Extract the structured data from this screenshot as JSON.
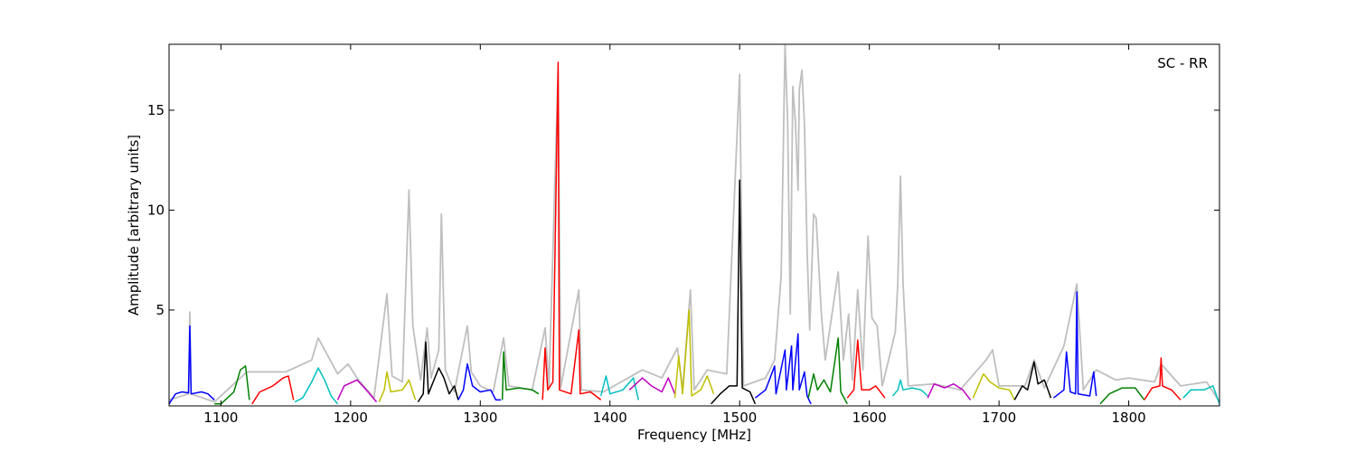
{
  "chart_data": {
    "type": "line",
    "xlabel": "Frequency [MHz]",
    "ylabel": "Amplitude [arbitrary units]",
    "annotation": "SC - RR",
    "annotation_position": "top-right",
    "xlim": [
      1060,
      1870
    ],
    "ylim": [
      0.2,
      18.3
    ],
    "xticks": [
      1100,
      1200,
      1300,
      1400,
      1500,
      1600,
      1700,
      1800
    ],
    "yticks": [
      5,
      10,
      15
    ],
    "grid": false,
    "legend": "none",
    "background_series": {
      "name": "",
      "color": "#bfbfbf",
      "points": [
        [
          1060,
          0.5
        ],
        [
          1075,
          0.8
        ],
        [
          1076,
          4.9
        ],
        [
          1077,
          0.8
        ],
        [
          1095,
          0.4
        ],
        [
          1120,
          1.9
        ],
        [
          1150,
          1.9
        ],
        [
          1170,
          2.5
        ],
        [
          1175,
          3.6
        ],
        [
          1180,
          3.0
        ],
        [
          1190,
          1.8
        ],
        [
          1198,
          2.3
        ],
        [
          1205,
          1.6
        ],
        [
          1218,
          0.6
        ],
        [
          1228,
          5.8
        ],
        [
          1232,
          1.7
        ],
        [
          1240,
          1.4
        ],
        [
          1245,
          11.0
        ],
        [
          1248,
          4.2
        ],
        [
          1254,
          1.5
        ],
        [
          1259,
          4.1
        ],
        [
          1262,
          1.6
        ],
        [
          1268,
          3.0
        ],
        [
          1270,
          9.8
        ],
        [
          1273,
          2.0
        ],
        [
          1280,
          0.9
        ],
        [
          1290,
          4.2
        ],
        [
          1293,
          1.9
        ],
        [
          1300,
          1.2
        ],
        [
          1310,
          0.9
        ],
        [
          1318,
          3.6
        ],
        [
          1322,
          1.2
        ],
        [
          1340,
          1.0
        ],
        [
          1350,
          4.1
        ],
        [
          1353,
          1.2
        ],
        [
          1360,
          17.0
        ],
        [
          1362,
          1.1
        ],
        [
          1376,
          6.0
        ],
        [
          1378,
          1.0
        ],
        [
          1395,
          0.9
        ],
        [
          1425,
          2.0
        ],
        [
          1440,
          1.6
        ],
        [
          1452,
          3.1
        ],
        [
          1456,
          1.0
        ],
        [
          1462,
          6.0
        ],
        [
          1465,
          1.0
        ],
        [
          1475,
          2.0
        ],
        [
          1490,
          1.8
        ],
        [
          1500,
          16.8
        ],
        [
          1503,
          1.2
        ],
        [
          1520,
          1.6
        ],
        [
          1527,
          2.5
        ],
        [
          1532,
          6.7
        ],
        [
          1535,
          18.3
        ],
        [
          1537,
          14.4
        ],
        [
          1539,
          4.8
        ],
        [
          1541,
          16.2
        ],
        [
          1543,
          14.4
        ],
        [
          1545,
          11.0
        ],
        [
          1546,
          16.0
        ],
        [
          1548,
          17.0
        ],
        [
          1550,
          14.3
        ],
        [
          1552,
          8.0
        ],
        [
          1554,
          4.0
        ],
        [
          1557,
          9.8
        ],
        [
          1559,
          9.6
        ],
        [
          1563,
          4.8
        ],
        [
          1566,
          2.5
        ],
        [
          1576,
          6.9
        ],
        [
          1580,
          2.5
        ],
        [
          1584,
          4.8
        ],
        [
          1587,
          1.5
        ],
        [
          1591,
          6.0
        ],
        [
          1595,
          2.0
        ],
        [
          1599,
          8.7
        ],
        [
          1602,
          4.6
        ],
        [
          1606,
          4.2
        ],
        [
          1610,
          1.2
        ],
        [
          1620,
          3.9
        ],
        [
          1622,
          6.4
        ],
        [
          1624,
          11.7
        ],
        [
          1626,
          6.3
        ],
        [
          1630,
          1.2
        ],
        [
          1650,
          1.3
        ],
        [
          1670,
          1.0
        ],
        [
          1690,
          2.5
        ],
        [
          1695,
          3.0
        ],
        [
          1700,
          1.2
        ],
        [
          1720,
          1.2
        ],
        [
          1727,
          2.5
        ],
        [
          1735,
          1.1
        ],
        [
          1750,
          3.2
        ],
        [
          1760,
          6.3
        ],
        [
          1765,
          1.0
        ],
        [
          1775,
          2.0
        ],
        [
          1790,
          1.5
        ],
        [
          1800,
          1.6
        ],
        [
          1820,
          1.4
        ],
        [
          1825,
          2.3
        ],
        [
          1840,
          1.2
        ],
        [
          1860,
          1.4
        ],
        [
          1870,
          0.4
        ]
      ]
    },
    "series": [
      {
        "name": "",
        "color": "#0000ff",
        "points": [
          [
            1060,
            0.3
          ],
          [
            1065,
            0.8
          ],
          [
            1070,
            0.9
          ],
          [
            1075,
            0.85
          ],
          [
            1076,
            4.2
          ],
          [
            1077,
            0.8
          ],
          [
            1085,
            0.9
          ],
          [
            1090,
            0.8
          ],
          [
            1095,
            0.5
          ]
        ]
      },
      {
        "name": "",
        "color": "#008000",
        "points": [
          [
            1095,
            0.3
          ],
          [
            1100,
            0.3
          ],
          [
            1105,
            0.6
          ],
          [
            1110,
            0.9
          ],
          [
            1115,
            2.0
          ],
          [
            1119,
            2.2
          ],
          [
            1122,
            0.5
          ]
        ]
      },
      {
        "name": "",
        "color": "#ff0000",
        "points": [
          [
            1124,
            0.3
          ],
          [
            1130,
            0.9
          ],
          [
            1140,
            1.2
          ],
          [
            1148,
            1.6
          ],
          [
            1152,
            1.7
          ],
          [
            1156,
            0.5
          ]
        ]
      },
      {
        "name": "",
        "color": "#00bfbf",
        "points": [
          [
            1157,
            0.4
          ],
          [
            1163,
            0.6
          ],
          [
            1170,
            1.4
          ],
          [
            1175,
            2.1
          ],
          [
            1180,
            1.5
          ],
          [
            1185,
            0.7
          ],
          [
            1190,
            0.3
          ]
        ]
      },
      {
        "name": "",
        "color": "#bf00bf",
        "points": [
          [
            1190,
            0.5
          ],
          [
            1195,
            1.2
          ],
          [
            1205,
            1.5
          ],
          [
            1212,
            1.0
          ],
          [
            1220,
            0.4
          ]
        ]
      },
      {
        "name": "",
        "color": "#bfbf00",
        "points": [
          [
            1222,
            0.4
          ],
          [
            1226,
            1.0
          ],
          [
            1228,
            1.9
          ],
          [
            1231,
            0.9
          ],
          [
            1240,
            1.0
          ],
          [
            1245,
            1.5
          ],
          [
            1250,
            0.5
          ]
        ]
      },
      {
        "name": "",
        "color": "#000000",
        "points": [
          [
            1252,
            0.4
          ],
          [
            1256,
            0.8
          ],
          [
            1258,
            3.4
          ],
          [
            1260,
            0.8
          ],
          [
            1268,
            2.1
          ],
          [
            1272,
            1.6
          ],
          [
            1276,
            0.8
          ],
          [
            1280,
            1.2
          ],
          [
            1283,
            0.5
          ]
        ]
      },
      {
        "name": "",
        "color": "#0000ff",
        "points": [
          [
            1283,
            0.5
          ],
          [
            1287,
            1.0
          ],
          [
            1290,
            2.3
          ],
          [
            1294,
            1.2
          ],
          [
            1300,
            0.9
          ],
          [
            1308,
            1.0
          ],
          [
            1312,
            0.5
          ],
          [
            1316,
            0.5
          ]
        ]
      },
      {
        "name": "",
        "color": "#008000",
        "points": [
          [
            1317,
            0.5
          ],
          [
            1318,
            2.9
          ],
          [
            1320,
            1.0
          ],
          [
            1330,
            1.1
          ],
          [
            1340,
            1.0
          ],
          [
            1345,
            0.8
          ]
        ]
      },
      {
        "name": "",
        "color": "#ff0000",
        "points": [
          [
            1348,
            0.5
          ],
          [
            1350,
            3.1
          ],
          [
            1352,
            1.0
          ],
          [
            1356,
            1.4
          ],
          [
            1360,
            17.4
          ],
          [
            1361,
            1.0
          ],
          [
            1370,
            0.8
          ],
          [
            1376,
            4.0
          ],
          [
            1377,
            0.8
          ],
          [
            1385,
            0.9
          ],
          [
            1393,
            0.5
          ]
        ]
      },
      {
        "name": "",
        "color": "#00bfbf",
        "points": [
          [
            1393,
            0.7
          ],
          [
            1397,
            1.7
          ],
          [
            1400,
            0.8
          ],
          [
            1410,
            1.0
          ],
          [
            1418,
            1.6
          ],
          [
            1422,
            0.5
          ]
        ]
      },
      {
        "name": "",
        "color": "#bf00bf",
        "points": [
          [
            1415,
            1.0
          ],
          [
            1425,
            1.6
          ],
          [
            1432,
            1.2
          ],
          [
            1440,
            0.9
          ],
          [
            1445,
            1.6
          ],
          [
            1450,
            0.8
          ]
        ]
      },
      {
        "name": "",
        "color": "#bfbf00",
        "points": [
          [
            1450,
            0.6
          ],
          [
            1453,
            2.7
          ],
          [
            1456,
            0.8
          ],
          [
            1461,
            5.0
          ],
          [
            1463,
            0.7
          ],
          [
            1470,
            1.0
          ],
          [
            1475,
            1.7
          ],
          [
            1480,
            0.8
          ]
        ]
      },
      {
        "name": "",
        "color": "#000000",
        "points": [
          [
            1478,
            0.3
          ],
          [
            1485,
            0.8
          ],
          [
            1492,
            1.2
          ],
          [
            1498,
            1.2
          ],
          [
            1500,
            11.5
          ],
          [
            1502,
            1.1
          ],
          [
            1508,
            0.9
          ],
          [
            1512,
            0.3
          ]
        ]
      },
      {
        "name": "",
        "color": "#0000ff",
        "points": [
          [
            1512,
            0.6
          ],
          [
            1520,
            1.0
          ],
          [
            1527,
            2.2
          ],
          [
            1528,
            0.8
          ],
          [
            1535,
            3.0
          ],
          [
            1536,
            1.0
          ],
          [
            1540,
            3.2
          ],
          [
            1541,
            1.0
          ],
          [
            1545,
            3.8
          ],
          [
            1546,
            1.0
          ],
          [
            1550,
            1.9
          ],
          [
            1552,
            0.7
          ],
          [
            1555,
            0.3
          ]
        ]
      },
      {
        "name": "",
        "color": "#008000",
        "points": [
          [
            1553,
            0.6
          ],
          [
            1557,
            1.8
          ],
          [
            1560,
            1.0
          ],
          [
            1565,
            1.5
          ],
          [
            1570,
            0.9
          ],
          [
            1576,
            3.6
          ],
          [
            1578,
            0.9
          ],
          [
            1583,
            0.3
          ]
        ]
      },
      {
        "name": "",
        "color": "#ff0000",
        "points": [
          [
            1583,
            0.6
          ],
          [
            1588,
            1.0
          ],
          [
            1591,
            3.5
          ],
          [
            1594,
            1.0
          ],
          [
            1600,
            1.0
          ],
          [
            1605,
            1.2
          ],
          [
            1612,
            0.6
          ]
        ]
      },
      {
        "name": "",
        "color": "#00bfbf",
        "points": [
          [
            1618,
            0.7
          ],
          [
            1622,
            1.0
          ],
          [
            1624,
            1.5
          ],
          [
            1626,
            1.0
          ],
          [
            1633,
            1.1
          ],
          [
            1640,
            1.0
          ],
          [
            1645,
            0.7
          ]
        ]
      },
      {
        "name": "",
        "color": "#bf00bf",
        "points": [
          [
            1645,
            0.6
          ],
          [
            1650,
            1.3
          ],
          [
            1658,
            1.1
          ],
          [
            1665,
            1.3
          ],
          [
            1672,
            1.0
          ],
          [
            1678,
            0.5
          ]
        ]
      },
      {
        "name": "",
        "color": "#bfbf00",
        "points": [
          [
            1680,
            0.6
          ],
          [
            1688,
            1.8
          ],
          [
            1693,
            1.4
          ],
          [
            1700,
            1.1
          ],
          [
            1708,
            1.0
          ],
          [
            1712,
            0.5
          ]
        ]
      },
      {
        "name": "",
        "color": "#000000",
        "points": [
          [
            1712,
            0.5
          ],
          [
            1718,
            1.2
          ],
          [
            1722,
            1.0
          ],
          [
            1727,
            2.4
          ],
          [
            1730,
            1.3
          ],
          [
            1735,
            1.5
          ],
          [
            1740,
            0.6
          ]
        ]
      },
      {
        "name": "",
        "color": "#0000ff",
        "points": [
          [
            1742,
            0.6
          ],
          [
            1750,
            1.0
          ],
          [
            1752,
            2.9
          ],
          [
            1755,
            0.9
          ],
          [
            1759,
            0.8
          ],
          [
            1760,
            5.9
          ],
          [
            1761,
            0.8
          ],
          [
            1770,
            0.7
          ],
          [
            1773,
            1.9
          ],
          [
            1775,
            0.7
          ]
        ]
      },
      {
        "name": "",
        "color": "#008000",
        "points": [
          [
            1778,
            0.3
          ],
          [
            1785,
            0.8
          ],
          [
            1795,
            1.1
          ],
          [
            1805,
            1.1
          ],
          [
            1812,
            0.5
          ]
        ]
      },
      {
        "name": "",
        "color": "#ff0000",
        "points": [
          [
            1812,
            0.5
          ],
          [
            1818,
            1.1
          ],
          [
            1824,
            1.2
          ],
          [
            1825,
            2.6
          ],
          [
            1826,
            1.2
          ],
          [
            1833,
            1.0
          ],
          [
            1840,
            0.5
          ]
        ]
      },
      {
        "name": "",
        "color": "#00bfbf",
        "points": [
          [
            1842,
            0.6
          ],
          [
            1848,
            1.0
          ],
          [
            1858,
            1.0
          ],
          [
            1865,
            1.2
          ],
          [
            1870,
            0.3
          ]
        ]
      }
    ]
  }
}
